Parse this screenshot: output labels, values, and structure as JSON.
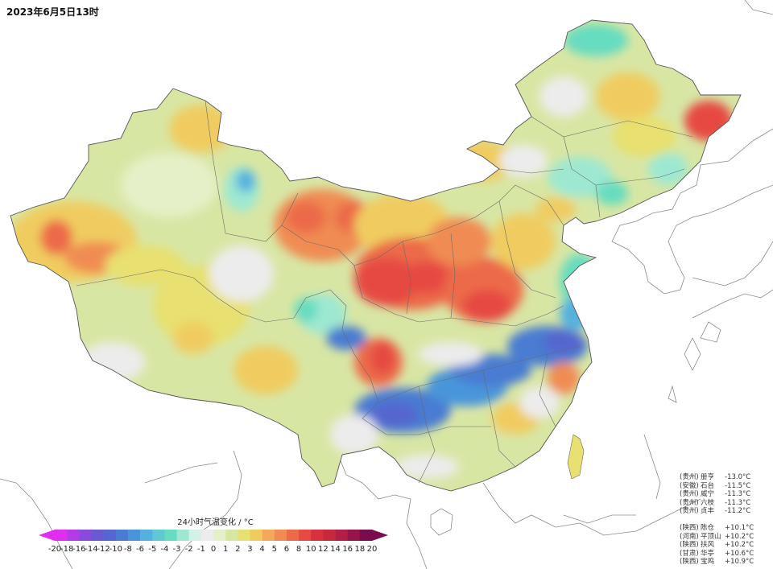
{
  "title": "2023年6月5日13时",
  "legend": {
    "title": "24小时气温变化 / °C",
    "ticks": [
      "-20",
      "-18",
      "-16",
      "-14",
      "-12",
      "-10",
      "-8",
      "-6",
      "-5",
      "-4",
      "-3",
      "-2",
      "-1",
      "0",
      "1",
      "2",
      "3",
      "4",
      "5",
      "6",
      "8",
      "10",
      "12",
      "14",
      "16",
      "18",
      "20"
    ],
    "colors": [
      "#e02df0",
      "#b43ce8",
      "#8a4adc",
      "#6a5ad2",
      "#5466cf",
      "#4a7cd2",
      "#4a95da",
      "#55b0e0",
      "#5ec8d6",
      "#66dcc0",
      "#9ee8d2",
      "#d2f2e8",
      "#ececec",
      "#e6f0c8",
      "#d8e6a4",
      "#e8e070",
      "#f0cc60",
      "#f2aa5a",
      "#f08c52",
      "#ec6a48",
      "#e64a42",
      "#d8303c",
      "#c8283c",
      "#b41e44",
      "#96144a",
      "#780c4c"
    ]
  },
  "stations_low": [
    {
      "province": "(贵州)",
      "name": "册亨",
      "value": "-13.0°C"
    },
    {
      "province": "(安徽)",
      "name": "石台",
      "value": "-11.5°C"
    },
    {
      "province": "(贵州)",
      "name": "威宁",
      "value": "-11.3°C"
    },
    {
      "province": "(贵州)",
      "name": "六枝",
      "value": "-11.3°C"
    },
    {
      "province": "(贵州)",
      "name": "贞丰",
      "value": "-11.2°C"
    }
  ],
  "stations_high": [
    {
      "province": "(陕西)",
      "name": "陈仓",
      "value": "+10.1°C"
    },
    {
      "province": "(河南)",
      "name": "平顶山",
      "value": "+10.2°C"
    },
    {
      "province": "(陕西)",
      "name": "扶风",
      "value": "+10.2°C"
    },
    {
      "province": "(甘肃)",
      "name": "华亭",
      "value": "+10.6°C"
    },
    {
      "province": "(陕西)",
      "name": "宝鸡",
      "value": "+10.9°C"
    }
  ]
}
